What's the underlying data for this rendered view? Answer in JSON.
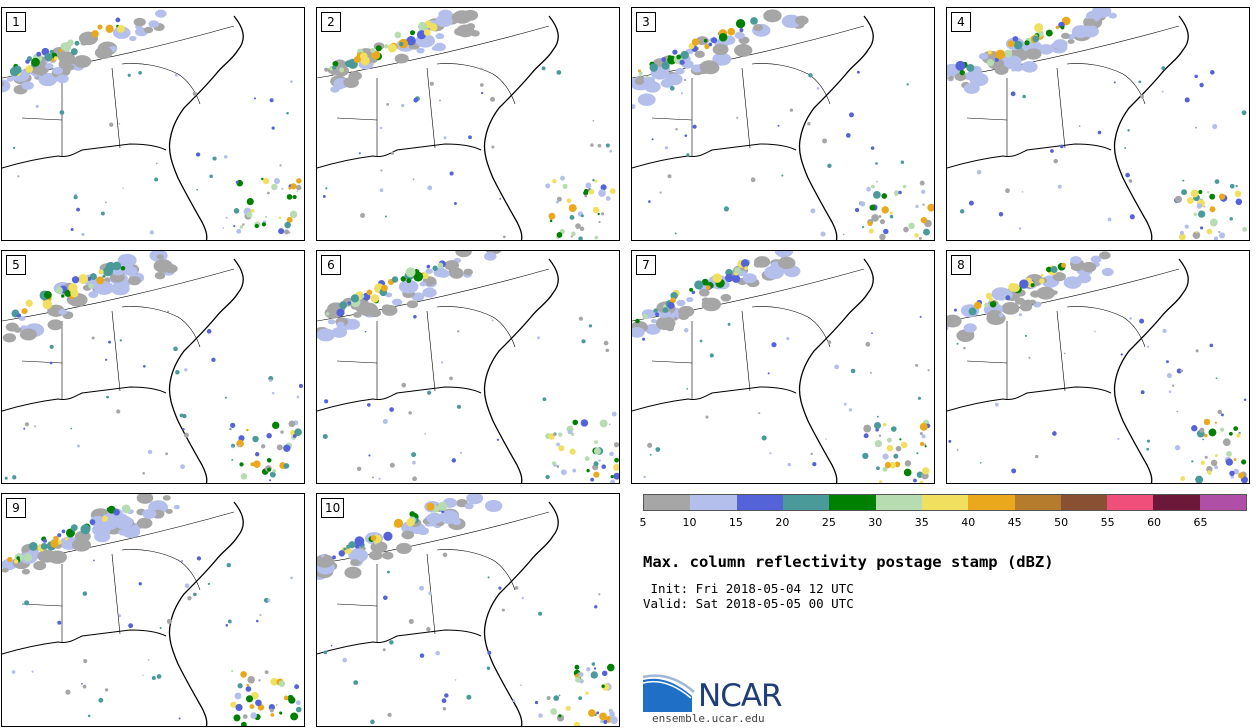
{
  "panels": [
    {
      "label": "1"
    },
    {
      "label": "2"
    },
    {
      "label": "3"
    },
    {
      "label": "4"
    },
    {
      "label": "5"
    },
    {
      "label": "6"
    },
    {
      "label": "7"
    },
    {
      "label": "8"
    },
    {
      "label": "9"
    },
    {
      "label": "10"
    }
  ],
  "colorbar": {
    "colors": [
      "#a6a6a6",
      "#b4bfec",
      "#5563d8",
      "#4a9a99",
      "#008000",
      "#b7dcb2",
      "#f1df60",
      "#eaa91c",
      "#b57c2e",
      "#8a5034",
      "#ef4f7a",
      "#6b1839",
      "#b04fa6"
    ],
    "ticks": [
      "5",
      "10",
      "15",
      "20",
      "25",
      "30",
      "35",
      "40",
      "45",
      "50",
      "55",
      "60",
      "65"
    ]
  },
  "title": "Max. column reflectivity postage stamp (dBZ)",
  "init": " Init: Fri 2018-05-04 12 UTC",
  "valid": "Valid: Sat 2018-05-05 00 UTC",
  "logo": {
    "text": "NCAR",
    "url": "ensemble.ucar.edu"
  }
}
